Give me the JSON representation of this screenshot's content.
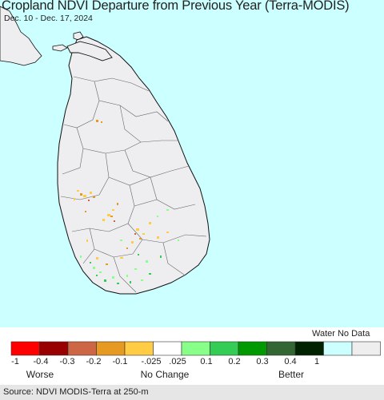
{
  "title": "Cropland NDVI Departure from Previous Year (Terra-MODIS)",
  "subtitle": "Dec. 10 - Dec. 17, 2024",
  "legend": {
    "water_no_data_label": "Water No Data",
    "swatches": [
      {
        "color": "#ff0000"
      },
      {
        "color": "#990000"
      },
      {
        "color": "#cc6644"
      },
      {
        "color": "#e69a22"
      },
      {
        "color": "#ffcc44"
      },
      {
        "color": "#ffffff"
      },
      {
        "color": "#88ff88"
      },
      {
        "color": "#33cc55"
      },
      {
        "color": "#009900"
      },
      {
        "color": "#336633"
      },
      {
        "color": "#002200"
      },
      {
        "color": "#ccffff"
      },
      {
        "color": "#eeeeee"
      }
    ],
    "ticks": [
      "-1",
      "-0.4",
      "-0.3",
      "-0.2",
      "-0.1",
      "-.025",
      ".025",
      "0.1",
      "0.2",
      "0.3",
      "0.4",
      "1"
    ],
    "categories": {
      "worse": "Worse",
      "no_change": "No Change",
      "better": "Better"
    }
  },
  "source": "Source: NDVI MODIS-Terra at 250-m",
  "colors": {
    "water": "#ccffff",
    "land": "#eeedf0",
    "border": "#111111",
    "district_lines": "#666666"
  }
}
